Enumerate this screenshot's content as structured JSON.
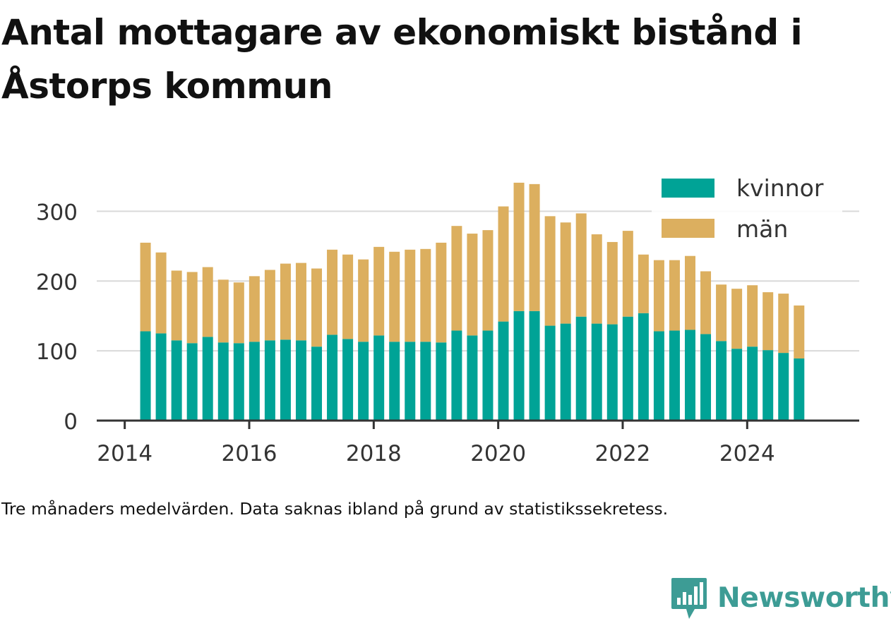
{
  "title": "Antal mottagare av ekonomiskt bistånd i Åstorps kommun",
  "caption": "Tre månaders medelvärden. Data saknas ibland på grund av statistikssekretess.",
  "brand": {
    "name": "Newsworthy",
    "icon": "newsworthy-bar-chart-icon"
  },
  "colors": {
    "kvinnor": "#00a396",
    "man": "#dcaf5f",
    "grid": "#d9d9d9",
    "axis": "#333333",
    "brand": "#3d9c95"
  },
  "chart_data": {
    "type": "bar",
    "stacked": true,
    "title": "Antal mottagare av ekonomiskt bistånd i Åstorps kommun",
    "xlabel": "",
    "ylabel": "",
    "ylim": [
      0,
      350
    ],
    "xlim": [
      2013.55,
      2025.8
    ],
    "grid": true,
    "legend_position": "top-right",
    "x_ticks": [
      "2014",
      "2016",
      "2018",
      "2020",
      "2022",
      "2024"
    ],
    "y_ticks": [
      "0",
      "100",
      "200",
      "300"
    ],
    "x": [
      "2014-05",
      "2014-08",
      "2014-11",
      "2015-02",
      "2015-05",
      "2015-08",
      "2015-11",
      "2016-02",
      "2016-05",
      "2016-08",
      "2016-11",
      "2017-02",
      "2017-05",
      "2017-08",
      "2017-11",
      "2018-02",
      "2018-05",
      "2018-08",
      "2018-11",
      "2019-02",
      "2019-05",
      "2019-08",
      "2019-11",
      "2020-02",
      "2020-05",
      "2020-08",
      "2020-11",
      "2021-02",
      "2021-05",
      "2021-08",
      "2021-11",
      "2022-02",
      "2022-05",
      "2022-08",
      "2022-11",
      "2023-02",
      "2023-05",
      "2023-08",
      "2023-11",
      "2024-02",
      "2024-05",
      "2024-08",
      "2024-11"
    ],
    "series": [
      {
        "name": "kvinnor",
        "values": [
          128,
          125,
          115,
          111,
          120,
          112,
          111,
          113,
          115,
          116,
          115,
          106,
          123,
          117,
          113,
          122,
          113,
          113,
          113,
          112,
          129,
          122,
          129,
          142,
          157,
          157,
          136,
          139,
          149,
          139,
          138,
          149,
          154,
          128,
          129,
          130,
          124,
          114,
          103,
          106,
          101,
          97,
          89
        ]
      },
      {
        "name": "män",
        "values": [
          127,
          116,
          100,
          102,
          100,
          90,
          87,
          94,
          101,
          109,
          111,
          112,
          122,
          121,
          118,
          127,
          129,
          132,
          133,
          143,
          150,
          146,
          144,
          165,
          184,
          182,
          157,
          145,
          148,
          128,
          118,
          123,
          84,
          102,
          101,
          106,
          90,
          81,
          86,
          88,
          83,
          85,
          76
        ]
      }
    ]
  }
}
